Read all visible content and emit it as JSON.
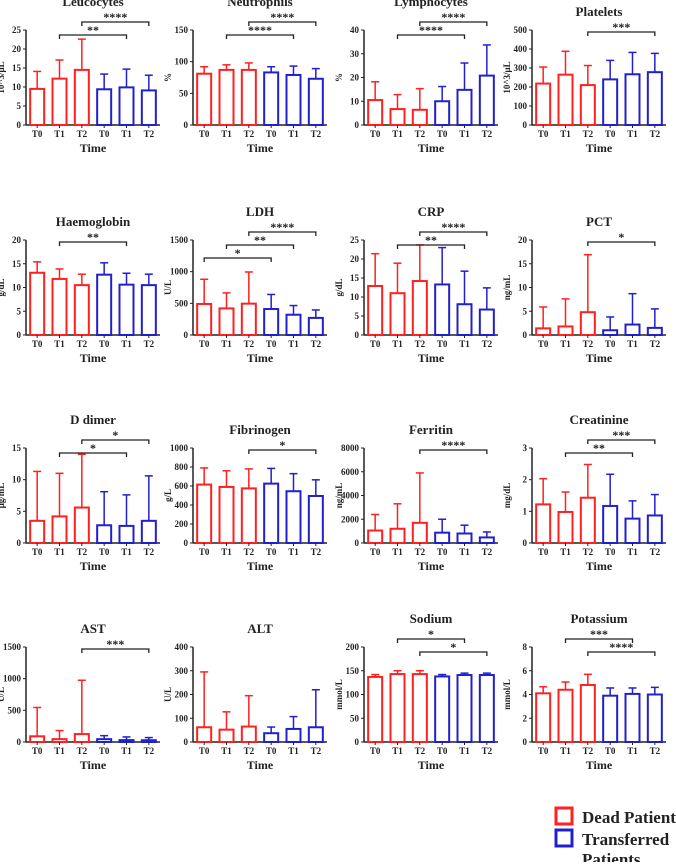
{
  "colors": {
    "dead": "#ff2020",
    "transferred": "#2020cc",
    "axis": "#222222"
  },
  "legend": [
    {
      "label": "Dead Patients",
      "color": "#ff2020"
    },
    {
      "label": "Transferred Patients",
      "color": "#2020cc"
    }
  ],
  "chart_data": [
    {
      "type": "bar",
      "title": "Leucocytes",
      "ylabel": "10^3/μL",
      "xlabel": "Time",
      "categories": [
        "T0",
        "T1",
        "T2",
        "T0",
        "T1",
        "T2"
      ],
      "groups": [
        "Dead",
        "Dead",
        "Dead",
        "Transferred",
        "Transferred",
        "Transferred"
      ],
      "ylim": [
        0,
        25
      ],
      "yticks": [
        0,
        5,
        10,
        15,
        20,
        25
      ],
      "values": [
        9.5,
        12.2,
        14.5,
        9.4,
        9.9,
        9.1
      ],
      "error_upper": [
        14.1,
        17.1,
        22.6,
        13.4,
        14.7,
        13.1
      ],
      "significance": [
        {
          "from": 2,
          "to": 5,
          "label": "****"
        },
        {
          "from": 1,
          "to": 4,
          "label": "**"
        }
      ]
    },
    {
      "type": "bar",
      "title": "Neutrophils",
      "ylabel": "%",
      "xlabel": "Time",
      "categories": [
        "T0",
        "T1",
        "T2",
        "T0",
        "T1",
        "T2"
      ],
      "groups": [
        "Dead",
        "Dead",
        "Dead",
        "Transferred",
        "Transferred",
        "Transferred"
      ],
      "ylim": [
        0,
        150
      ],
      "yticks": [
        0,
        50,
        100,
        150
      ],
      "values": [
        81,
        87,
        87,
        83,
        79,
        73
      ],
      "error_upper": [
        92,
        95,
        98,
        92,
        93,
        89
      ],
      "significance": [
        {
          "from": 2,
          "to": 5,
          "label": "****"
        },
        {
          "from": 1,
          "to": 4,
          "label": "****"
        }
      ]
    },
    {
      "type": "bar",
      "title": "Lymphocytes",
      "ylabel": "%",
      "xlabel": "Time",
      "categories": [
        "T0",
        "T1",
        "T2",
        "T0",
        "T1",
        "T2"
      ],
      "groups": [
        "Dead",
        "Dead",
        "Dead",
        "Transferred",
        "Transferred",
        "Transferred"
      ],
      "ylim": [
        0,
        40
      ],
      "yticks": [
        0,
        10,
        20,
        30,
        40
      ],
      "values": [
        10.5,
        6.7,
        6.4,
        10,
        14.8,
        20.8
      ],
      "error_upper": [
        18.2,
        12.8,
        15.3,
        16.2,
        26.1,
        33.7
      ],
      "significance": [
        {
          "from": 2,
          "to": 5,
          "label": "****"
        },
        {
          "from": 1,
          "to": 4,
          "label": "****"
        }
      ]
    },
    {
      "type": "bar",
      "title": "Platelets",
      "ylabel": "10^3/μL",
      "xlabel": "Time",
      "categories": [
        "T0",
        "T1",
        "T2",
        "T0",
        "T1",
        "T2"
      ],
      "groups": [
        "Dead",
        "Dead",
        "Dead",
        "Transferred",
        "Transferred",
        "Transferred"
      ],
      "ylim": [
        0,
        500
      ],
      "yticks": [
        0,
        100,
        200,
        300,
        400,
        500
      ],
      "values": [
        218,
        265,
        210,
        240,
        267,
        278
      ],
      "error_upper": [
        305,
        388,
        313,
        340,
        382,
        377
      ],
      "significance": [
        {
          "from": 2,
          "to": 5,
          "label": "***"
        }
      ]
    },
    {
      "type": "bar",
      "title": "Haemoglobin",
      "ylabel": "g/dL",
      "xlabel": "Time",
      "categories": [
        "T0",
        "T1",
        "T2",
        "T0",
        "T1",
        "T2"
      ],
      "groups": [
        "Dead",
        "Dead",
        "Dead",
        "Transferred",
        "Transferred",
        "Transferred"
      ],
      "ylim": [
        0,
        20
      ],
      "yticks": [
        0,
        5,
        10,
        15,
        20
      ],
      "values": [
        13.1,
        11.8,
        10.5,
        12.7,
        10.6,
        10.5
      ],
      "error_upper": [
        15.4,
        13.9,
        12.8,
        15.2,
        13,
        12.8
      ],
      "significance": [
        {
          "from": 1,
          "to": 4,
          "label": "**"
        }
      ]
    },
    {
      "type": "bar",
      "title": "LDH",
      "ylabel": "U/L",
      "xlabel": "Time",
      "categories": [
        "T0",
        "T1",
        "T2",
        "T0",
        "T1",
        "T2"
      ],
      "groups": [
        "Dead",
        "Dead",
        "Dead",
        "Transferred",
        "Transferred",
        "Transferred"
      ],
      "ylim": [
        0,
        1500
      ],
      "yticks": [
        0,
        500,
        1000,
        1500
      ],
      "values": [
        490,
        420,
        495,
        410,
        320,
        270
      ],
      "error_upper": [
        880,
        665,
        995,
        640,
        465,
        395
      ],
      "significance": [
        {
          "from": 2,
          "to": 5,
          "label": "****"
        },
        {
          "from": 1,
          "to": 4,
          "label": "**"
        },
        {
          "from": 0,
          "to": 3,
          "label": "*"
        }
      ]
    },
    {
      "type": "bar",
      "title": "CRP",
      "ylabel": "g/dL",
      "xlabel": "Time",
      "categories": [
        "T0",
        "T1",
        "T2",
        "T0",
        "T1",
        "T2"
      ],
      "groups": [
        "Dead",
        "Dead",
        "Dead",
        "Transferred",
        "Transferred",
        "Transferred"
      ],
      "ylim": [
        0,
        25
      ],
      "yticks": [
        0,
        5,
        10,
        15,
        20,
        25
      ],
      "values": [
        12.9,
        11,
        14.2,
        13.3,
        8.1,
        6.7
      ],
      "error_upper": [
        21.4,
        18.9,
        23.7,
        23,
        16.8,
        12.4
      ],
      "significance": [
        {
          "from": 2,
          "to": 5,
          "label": "****"
        },
        {
          "from": 1,
          "to": 4,
          "label": "**"
        }
      ]
    },
    {
      "type": "bar",
      "title": "PCT",
      "ylabel": "ng/mL",
      "xlabel": "Time",
      "categories": [
        "T0",
        "T1",
        "T2",
        "T0",
        "T1",
        "T2"
      ],
      "groups": [
        "Dead",
        "Dead",
        "Dead",
        "Transferred",
        "Transferred",
        "Transferred"
      ],
      "ylim": [
        0,
        20
      ],
      "yticks": [
        0,
        5,
        10,
        15,
        20
      ],
      "values": [
        1.4,
        1.8,
        4.8,
        1.0,
        2.2,
        1.5
      ],
      "error_upper": [
        5.9,
        7.6,
        16.9,
        3.8,
        8.7,
        5.5
      ],
      "significance": [
        {
          "from": 2,
          "to": 5,
          "label": "*"
        }
      ]
    },
    {
      "type": "bar",
      "title": "D dimer",
      "ylabel": "μg/mL",
      "xlabel": "Time",
      "categories": [
        "T0",
        "T1",
        "T2",
        "T0",
        "T1",
        "T2"
      ],
      "groups": [
        "Dead",
        "Dead",
        "Dead",
        "Transferred",
        "Transferred",
        "Transferred"
      ],
      "ylim": [
        0,
        15
      ],
      "yticks": [
        0,
        5,
        10,
        15
      ],
      "values": [
        3.5,
        4.2,
        5.6,
        2.8,
        2.7,
        3.5
      ],
      "error_upper": [
        11.3,
        11,
        14,
        8.1,
        7.6,
        10.6
      ],
      "significance": [
        {
          "from": 2,
          "to": 5,
          "label": "*"
        },
        {
          "from": 1,
          "to": 4,
          "label": "*"
        }
      ]
    },
    {
      "type": "bar",
      "title": "Fibrinogen",
      "ylabel": "g/L",
      "xlabel": "Time",
      "categories": [
        "T0",
        "T1",
        "T2",
        "T0",
        "T1",
        "T2"
      ],
      "groups": [
        "Dead",
        "Dead",
        "Dead",
        "Transferred",
        "Transferred",
        "Transferred"
      ],
      "ylim": [
        0,
        1000
      ],
      "yticks": [
        0,
        200,
        400,
        600,
        800,
        1000
      ],
      "values": [
        615,
        590,
        575,
        625,
        545,
        495
      ],
      "error_upper": [
        790,
        760,
        780,
        785,
        730,
        665
      ],
      "significance": [
        {
          "from": 2,
          "to": 5,
          "label": "*"
        }
      ]
    },
    {
      "type": "bar",
      "title": "Ferritin",
      "ylabel": "ng/mL",
      "xlabel": "Time",
      "categories": [
        "T0",
        "T1",
        "T2",
        "T0",
        "T1",
        "T2"
      ],
      "groups": [
        "Dead",
        "Dead",
        "Dead",
        "Transferred",
        "Transferred",
        "Transferred"
      ],
      "ylim": [
        0,
        8000
      ],
      "yticks": [
        0,
        2000,
        4000,
        6000,
        8000
      ],
      "values": [
        1050,
        1200,
        1700,
        870,
        800,
        470
      ],
      "error_upper": [
        2400,
        3300,
        5900,
        2000,
        1500,
        930
      ],
      "significance": [
        {
          "from": 2,
          "to": 5,
          "label": "****"
        }
      ]
    },
    {
      "type": "bar",
      "title": "Creatinine",
      "ylabel": "mg/dL",
      "xlabel": "Time",
      "categories": [
        "T0",
        "T1",
        "T2",
        "T0",
        "T1",
        "T2"
      ],
      "groups": [
        "Dead",
        "Dead",
        "Dead",
        "Transferred",
        "Transferred",
        "Transferred"
      ],
      "ylim": [
        0,
        3
      ],
      "yticks": [
        0,
        1,
        2,
        3
      ],
      "values": [
        1.22,
        0.98,
        1.43,
        1.17,
        0.77,
        0.87
      ],
      "error_upper": [
        2.03,
        1.61,
        2.48,
        2.17,
        1.33,
        1.53
      ],
      "significance": [
        {
          "from": 2,
          "to": 5,
          "label": "***"
        },
        {
          "from": 1,
          "to": 4,
          "label": "**"
        }
      ]
    },
    {
      "type": "bar",
      "title": "AST",
      "ylabel": "U/L",
      "xlabel": "Time",
      "categories": [
        "T0",
        "T1",
        "T2",
        "T0",
        "T1",
        "T2"
      ],
      "groups": [
        "Dead",
        "Dead",
        "Dead",
        "Transferred",
        "Transferred",
        "Transferred"
      ],
      "ylim": [
        0,
        1500
      ],
      "yticks": [
        0,
        500,
        1000,
        1500
      ],
      "values": [
        90,
        45,
        125,
        45,
        30,
        28
      ],
      "error_upper": [
        545,
        180,
        975,
        100,
        80,
        70
      ],
      "significance": [
        {
          "from": 2,
          "to": 5,
          "label": "***"
        }
      ]
    },
    {
      "type": "bar",
      "title": "ALT",
      "ylabel": "U/L",
      "xlabel": "Time",
      "categories": [
        "T0",
        "T1",
        "T2",
        "T0",
        "T1",
        "T2"
      ],
      "groups": [
        "Dead",
        "Dead",
        "Dead",
        "Transferred",
        "Transferred",
        "Transferred"
      ],
      "ylim": [
        0,
        400
      ],
      "yticks": [
        0,
        100,
        200,
        300,
        400
      ],
      "values": [
        62,
        52,
        65,
        37,
        55,
        62
      ],
      "error_upper": [
        295,
        127,
        195,
        63,
        107,
        220
      ],
      "significance": []
    },
    {
      "type": "bar",
      "title": "Sodium",
      "ylabel": "mmol/L",
      "xlabel": "Time",
      "categories": [
        "T0",
        "T1",
        "T2",
        "T0",
        "T1",
        "T2"
      ],
      "groups": [
        "Dead",
        "Dead",
        "Dead",
        "Transferred",
        "Transferred",
        "Transferred"
      ],
      "ylim": [
        0,
        200
      ],
      "yticks": [
        0,
        50,
        100,
        150,
        200
      ],
      "values": [
        137,
        143,
        143,
        138,
        141,
        141
      ],
      "error_upper": [
        142,
        150,
        150,
        142,
        145,
        145
      ],
      "significance": [
        {
          "from": 1,
          "to": 4,
          "label": "*"
        },
        {
          "from": 2,
          "to": 5,
          "label": "*"
        }
      ]
    },
    {
      "type": "bar",
      "title": "Potassium",
      "ylabel": "mmol/L",
      "xlabel": "Time",
      "categories": [
        "T0",
        "T1",
        "T2",
        "T0",
        "T1",
        "T2"
      ],
      "groups": [
        "Dead",
        "Dead",
        "Dead",
        "Transferred",
        "Transferred",
        "Transferred"
      ],
      "ylim": [
        0,
        8
      ],
      "yticks": [
        0,
        2,
        4,
        6,
        8
      ],
      "values": [
        4.1,
        4.4,
        4.8,
        3.9,
        4.05,
        4.0
      ],
      "error_upper": [
        4.65,
        5.05,
        5.7,
        4.55,
        4.55,
        4.6
      ],
      "significance": [
        {
          "from": 1,
          "to": 4,
          "label": "***"
        },
        {
          "from": 2,
          "to": 5,
          "label": "****"
        }
      ]
    }
  ]
}
